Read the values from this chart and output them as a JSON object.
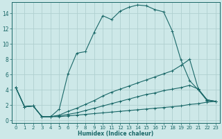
{
  "xlabel": "Humidex (Indice chaleur)",
  "background_color": "#cde8e8",
  "grid_color": "#b0d0d0",
  "line_color": "#1a6868",
  "xlim": [
    -0.5,
    23.5
  ],
  "ylim": [
    -0.3,
    15.5
  ],
  "yticks": [
    0,
    2,
    4,
    6,
    8,
    10,
    12,
    14
  ],
  "xticks": [
    0,
    1,
    2,
    3,
    4,
    5,
    6,
    7,
    8,
    9,
    10,
    11,
    12,
    13,
    14,
    15,
    16,
    17,
    18,
    19,
    20,
    21,
    22,
    23
  ],
  "lines": [
    {
      "x": [
        0,
        1,
        2,
        3,
        4,
        5,
        6,
        7,
        8,
        9,
        10,
        11,
        12,
        13,
        14,
        15,
        16,
        17,
        18,
        19,
        20,
        21,
        22,
        23
      ],
      "y": [
        4.3,
        1.8,
        1.9,
        0.5,
        0.5,
        1.5,
        6.1,
        8.8,
        9.0,
        11.5,
        13.7,
        13.2,
        14.3,
        14.8,
        15.1,
        15.0,
        14.5,
        14.2,
        11.7,
        7.9,
        5.2,
        4.0,
        2.6,
        2.5
      ]
    },
    {
      "x": [
        0,
        1,
        2,
        3,
        4,
        5,
        6,
        7,
        8,
        9,
        10,
        11,
        12,
        13,
        14,
        15,
        16,
        17,
        18,
        19,
        20,
        21,
        22,
        23
      ],
      "y": [
        4.3,
        1.8,
        1.9,
        0.5,
        0.5,
        0.7,
        1.2,
        1.6,
        2.1,
        2.6,
        3.2,
        3.7,
        4.1,
        4.5,
        4.9,
        5.3,
        5.7,
        6.1,
        6.5,
        7.2,
        8.0,
        4.1,
        2.7,
        2.5
      ]
    },
    {
      "x": [
        0,
        1,
        2,
        3,
        4,
        5,
        6,
        7,
        8,
        9,
        10,
        11,
        12,
        13,
        14,
        15,
        16,
        17,
        18,
        19,
        20,
        21,
        22,
        23
      ],
      "y": [
        4.3,
        1.8,
        1.9,
        0.5,
        0.5,
        0.6,
        0.8,
        1.0,
        1.3,
        1.6,
        1.9,
        2.2,
        2.5,
        2.8,
        3.1,
        3.4,
        3.6,
        3.9,
        4.1,
        4.3,
        4.6,
        4.1,
        2.7,
        2.5
      ]
    },
    {
      "x": [
        0,
        1,
        2,
        3,
        4,
        5,
        6,
        7,
        8,
        9,
        10,
        11,
        12,
        13,
        14,
        15,
        16,
        17,
        18,
        19,
        20,
        21,
        22,
        23
      ],
      "y": [
        4.3,
        1.8,
        1.9,
        0.5,
        0.5,
        0.5,
        0.6,
        0.7,
        0.8,
        0.9,
        1.0,
        1.1,
        1.2,
        1.3,
        1.4,
        1.5,
        1.6,
        1.7,
        1.8,
        1.9,
        2.1,
        2.2,
        2.4,
        2.5
      ]
    }
  ]
}
